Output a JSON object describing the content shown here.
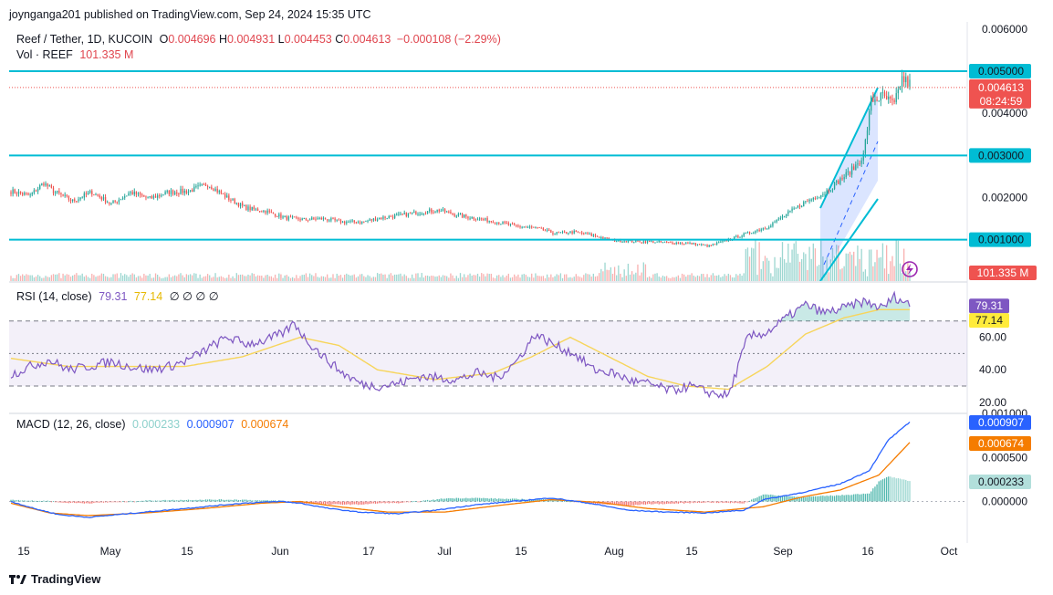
{
  "header": {
    "publisher": "joynganga201 published on TradingView.com, Sep 24, 2024 15:35 UTC",
    "symbol": "Reef / Tether, 1D, KUCOIN",
    "o_label": "O",
    "o_value": "0.004696",
    "h_label": "H",
    "h_value": "0.004931",
    "l_label": "L",
    "l_value": "0.004453",
    "c_label": "C",
    "c_value": "0.004613",
    "change": "−0.000108 (−2.29%)",
    "vol_label": "Vol · REEF",
    "vol_value": "101.335 M"
  },
  "rsi_legend": {
    "label": "RSI (14, close)",
    "rsi": "79.31",
    "ma": "77.14",
    "extras": "∅ ∅ ∅ ∅"
  },
  "macd_legend": {
    "label": "MACD (12, 26, close)",
    "hist": "0.000233",
    "macd": "0.000907",
    "signal": "0.000674"
  },
  "footer": {
    "brand": "TradingView"
  },
  "colors": {
    "up": "#26a69a",
    "down": "#ef5350",
    "level": "#00bcd4",
    "rsi": "#7e57c2",
    "rsi_ma": "#f7d55b",
    "macd": "#2962ff",
    "signal": "#f57c00"
  },
  "chart_data": {
    "type": "candlestick",
    "price_axis": {
      "ticks": [
        "0.006000",
        "0.005000",
        "0.004000",
        "0.003000",
        "0.002000",
        "0.001000"
      ],
      "range": [
        0.0,
        0.0062
      ]
    },
    "x_ticks": [
      "15",
      "May",
      "15",
      "Jun",
      "17",
      "Jul",
      "15",
      "Aug",
      "15",
      "Sep",
      "16",
      "Oct"
    ],
    "horizontal_levels": [
      {
        "value": 0.005,
        "label": "0.005000"
      },
      {
        "value": 0.003,
        "label": "0.003000"
      },
      {
        "value": 0.001,
        "label": "0.001000"
      }
    ],
    "last_price": {
      "value": 0.004613,
      "label": "0.004613",
      "countdown": "08:24:59"
    },
    "volume_badge": "101.335 M",
    "price_anchors": [
      [
        0,
        0.00215
      ],
      [
        10,
        0.00205
      ],
      [
        17,
        0.00235
      ],
      [
        22,
        0.00215
      ],
      [
        32,
        0.00192
      ],
      [
        42,
        0.00213
      ],
      [
        52,
        0.00185
      ],
      [
        62,
        0.00212
      ],
      [
        72,
        0.00198
      ],
      [
        82,
        0.00213
      ],
      [
        92,
        0.00215
      ],
      [
        102,
        0.00232
      ],
      [
        112,
        0.002
      ],
      [
        122,
        0.00175
      ],
      [
        132,
        0.00168
      ],
      [
        142,
        0.00152
      ],
      [
        152,
        0.00148
      ],
      [
        162,
        0.0015
      ],
      [
        172,
        0.00142
      ],
      [
        182,
        0.00142
      ],
      [
        192,
        0.00152
      ],
      [
        202,
        0.00158
      ],
      [
        212,
        0.00165
      ],
      [
        222,
        0.0017
      ],
      [
        232,
        0.00158
      ],
      [
        242,
        0.0015
      ],
      [
        252,
        0.00142
      ],
      [
        262,
        0.00132
      ],
      [
        272,
        0.00128
      ],
      [
        282,
        0.00115
      ],
      [
        292,
        0.00118
      ],
      [
        302,
        0.0011
      ],
      [
        312,
        0.00098
      ],
      [
        322,
        0.00096
      ],
      [
        332,
        0.00095
      ],
      [
        342,
        0.00093
      ],
      [
        352,
        0.00091
      ],
      [
        362,
        0.00085
      ],
      [
        372,
        0.001
      ],
      [
        382,
        0.00115
      ],
      [
        392,
        0.0013
      ],
      [
        402,
        0.0016
      ],
      [
        412,
        0.0019
      ],
      [
        422,
        0.00212
      ],
      [
        432,
        0.0025
      ],
      [
        437,
        0.0027
      ],
      [
        442,
        0.003
      ],
      [
        446,
        0.0043
      ],
      [
        452,
        0.0044
      ],
      [
        458,
        0.0042
      ],
      [
        462,
        0.00482
      ],
      [
        466,
        0.0047
      ]
    ],
    "rsi": {
      "axis_ticks": [
        "60.00",
        "40.00",
        "20.00"
      ],
      "range": [
        15,
        95
      ],
      "bands": [
        70,
        50,
        30
      ],
      "anchors": [
        [
          0,
          37
        ],
        [
          12,
          43
        ],
        [
          20,
          46
        ],
        [
          30,
          40
        ],
        [
          40,
          42
        ],
        [
          52,
          45
        ],
        [
          62,
          42
        ],
        [
          72,
          40
        ],
        [
          82,
          42
        ],
        [
          92,
          46
        ],
        [
          102,
          53
        ],
        [
          112,
          60
        ],
        [
          122,
          56
        ],
        [
          132,
          58
        ],
        [
          142,
          63
        ],
        [
          147,
          69
        ],
        [
          152,
          60
        ],
        [
          162,
          48
        ],
        [
          172,
          38
        ],
        [
          182,
          31
        ],
        [
          192,
          30
        ],
        [
          202,
          32
        ],
        [
          212,
          36
        ],
        [
          222,
          35
        ],
        [
          232,
          34
        ],
        [
          242,
          38
        ],
        [
          252,
          35
        ],
        [
          262,
          45
        ],
        [
          272,
          62
        ],
        [
          282,
          55
        ],
        [
          292,
          50
        ],
        [
          302,
          40
        ],
        [
          312,
          38
        ],
        [
          322,
          33
        ],
        [
          332,
          31
        ],
        [
          342,
          27
        ],
        [
          352,
          30
        ],
        [
          362,
          26
        ],
        [
          372,
          24
        ],
        [
          382,
          60
        ],
        [
          392,
          63
        ],
        [
          402,
          72
        ],
        [
          412,
          80
        ],
        [
          422,
          75
        ],
        [
          432,
          78
        ],
        [
          442,
          82
        ],
        [
          452,
          78
        ],
        [
          458,
          85
        ],
        [
          466,
          80
        ]
      ],
      "ma_anchors": [
        [
          0,
          47
        ],
        [
          30,
          42
        ],
        [
          60,
          42
        ],
        [
          90,
          42
        ],
        [
          120,
          48
        ],
        [
          150,
          60
        ],
        [
          170,
          55
        ],
        [
          190,
          40
        ],
        [
          220,
          34
        ],
        [
          250,
          38
        ],
        [
          270,
          48
        ],
        [
          290,
          60
        ],
        [
          310,
          48
        ],
        [
          330,
          36
        ],
        [
          350,
          30
        ],
        [
          372,
          28
        ],
        [
          392,
          42
        ],
        [
          412,
          62
        ],
        [
          432,
          72
        ],
        [
          450,
          77
        ],
        [
          466,
          77
        ]
      ],
      "current": "79.31",
      "ma_current": "77.14"
    },
    "macd": {
      "axis_ticks": [
        "0.001000",
        "0.000500",
        "0.000000"
      ],
      "range": [
        -0.00022,
        0.00106
      ],
      "macd_anchors": [
        [
          0,
          0
        ],
        [
          12,
          -8e-05
        ],
        [
          25,
          -0.00015
        ],
        [
          40,
          -0.00018
        ],
        [
          60,
          -0.00014
        ],
        [
          80,
          -0.0001
        ],
        [
          100,
          -6e-05
        ],
        [
          120,
          -2e-05
        ],
        [
          140,
          0
        ],
        [
          150,
          -2e-05
        ],
        [
          165,
          -8e-05
        ],
        [
          180,
          -0.00012
        ],
        [
          200,
          -0.00014
        ],
        [
          220,
          -0.0001
        ],
        [
          240,
          -4e-05
        ],
        [
          260,
          0
        ],
        [
          280,
          4e-05
        ],
        [
          300,
          -2e-05
        ],
        [
          320,
          -0.0001
        ],
        [
          340,
          -0.00012
        ],
        [
          360,
          -0.00013
        ],
        [
          380,
          -0.0001
        ],
        [
          390,
          2e-05
        ],
        [
          410,
          0.0001
        ],
        [
          430,
          0.0002
        ],
        [
          445,
          0.00035
        ],
        [
          455,
          0.0007
        ],
        [
          466,
          0.0009
        ]
      ],
      "signal_anchors": [
        [
          0,
          -2e-05
        ],
        [
          20,
          -0.00013
        ],
        [
          40,
          -0.00016
        ],
        [
          70,
          -0.00013
        ],
        [
          100,
          -8e-05
        ],
        [
          130,
          -2e-05
        ],
        [
          150,
          0
        ],
        [
          170,
          -6e-05
        ],
        [
          195,
          -0.00012
        ],
        [
          225,
          -0.00012
        ],
        [
          255,
          -4e-05
        ],
        [
          280,
          2e-05
        ],
        [
          305,
          -1e-05
        ],
        [
          330,
          -8e-05
        ],
        [
          360,
          -0.00012
        ],
        [
          390,
          -6e-05
        ],
        [
          410,
          5e-05
        ],
        [
          430,
          0.00013
        ],
        [
          450,
          0.0003
        ],
        [
          466,
          0.00067
        ]
      ],
      "current_macd": "0.000907",
      "current_signal": "0.000674",
      "current_hist": "0.000233"
    }
  }
}
